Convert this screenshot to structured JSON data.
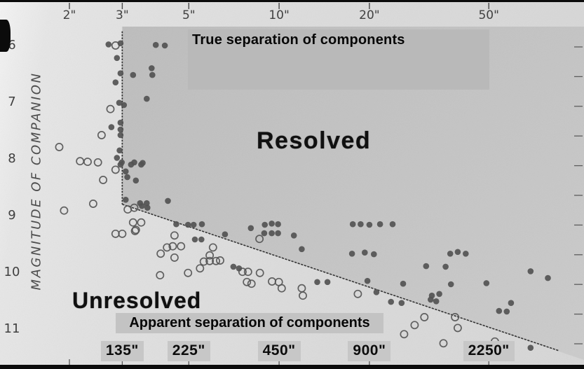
{
  "figure": {
    "top_axis_title": "True separation of components",
    "bottom_axis_title": "Apparent separation of components",
    "y_axis_title": "MAGNITUDE  OF  COMPANION",
    "region_labels": {
      "resolved": "Resolved",
      "unresolved": "Unresolved"
    },
    "top_ticks": [
      {
        "label": "2\"",
        "sep": 2
      },
      {
        "label": "3\"",
        "sep": 3
      },
      {
        "label": "5\"",
        "sep": 5
      },
      {
        "label": "10\"",
        "sep": 10
      },
      {
        "label": "20\"",
        "sep": 20
      },
      {
        "label": "50\"",
        "sep": 50
      }
    ],
    "bottom_ticks": [
      {
        "label": "135\"",
        "sep": 3
      },
      {
        "label": "225\"",
        "sep": 5
      },
      {
        "label": "450\"",
        "sep": 10
      },
      {
        "label": "900\"",
        "sep": 20
      },
      {
        "label": "2250\"",
        "sep": 50
      }
    ],
    "y_ticks": [
      {
        "label": "6",
        "mag": 6
      },
      {
        "label": "7",
        "mag": 7
      },
      {
        "label": "8",
        "mag": 8
      },
      {
        "label": "9",
        "mag": 9
      },
      {
        "label": "10",
        "mag": 10
      },
      {
        "label": "11",
        "mag": 11
      }
    ],
    "colors": {
      "resolved_region_dark": "#bdbdbd",
      "resolved_region_light": "#cbcbcb",
      "unresolved_region": "#e0e0e0",
      "overlay_patch": "#b9b9b9",
      "label_patch": "#c7c7c7",
      "marker": "#4f4f4f",
      "boundary_line": "#2f2f2f",
      "scan_bar": "#0b0b0b"
    }
  },
  "chart_data": {
    "type": "scatter",
    "x_axis": {
      "label": "True separation of components",
      "unit": "arcsec",
      "scale": "log",
      "range": [
        1.7,
        90
      ],
      "secondary_label": "Apparent separation of components",
      "secondary_tick_values": [
        "135\"",
        "225\"",
        "450\"",
        "900\"",
        "2250\""
      ],
      "secondary_factor": 45
    },
    "y_axis": {
      "label": "Magnitude of companion",
      "range": [
        5.7,
        11.45
      ],
      "inverted": true
    },
    "boundary_line": {
      "vertical_at_arcsec": 3,
      "vertical_from_mag": 5.75,
      "vertex": [
        3,
        8.8
      ],
      "diagonal_end": [
        85.5,
        11.38
      ]
    },
    "series": [
      {
        "name": "Resolved",
        "marker": "filled-dot",
        "points": [
          [
            2.7,
            5.98
          ],
          [
            2.96,
            5.96
          ],
          [
            2.88,
            6.22
          ],
          [
            2.96,
            6.49
          ],
          [
            3.26,
            6.52
          ],
          [
            2.85,
            6.65
          ],
          [
            3.88,
            5.99
          ],
          [
            4.16,
            6.0
          ],
          [
            3.76,
            6.4
          ],
          [
            3.78,
            6.52
          ],
          [
            3.62,
            6.94
          ],
          [
            2.93,
            7.01
          ],
          [
            3.04,
            7.05
          ],
          [
            2.96,
            7.36
          ],
          [
            2.96,
            7.48
          ],
          [
            2.96,
            7.58
          ],
          [
            2.76,
            7.44
          ],
          [
            2.94,
            7.85
          ],
          [
            2.88,
            7.98
          ],
          [
            2.99,
            8.06
          ],
          [
            3.29,
            8.06
          ],
          [
            3.51,
            8.07
          ],
          [
            2.96,
            8.1
          ],
          [
            3.21,
            8.1
          ],
          [
            3.47,
            8.1
          ],
          [
            3.08,
            8.22
          ],
          [
            3.12,
            8.32
          ],
          [
            3.33,
            8.38
          ],
          [
            3.08,
            8.72
          ],
          [
            3.44,
            8.78
          ],
          [
            3.62,
            8.78
          ],
          [
            4.26,
            8.74
          ],
          [
            3.49,
            8.83
          ],
          [
            3.64,
            8.86
          ],
          [
            4.54,
            9.15
          ],
          [
            4.97,
            9.16
          ],
          [
            5.19,
            9.16
          ],
          [
            5.53,
            9.15
          ],
          [
            5.24,
            9.42
          ],
          [
            5.51,
            9.42
          ],
          [
            6.6,
            9.33
          ],
          [
            8.05,
            9.22
          ],
          [
            8.96,
            9.16
          ],
          [
            9.45,
            9.14
          ],
          [
            9.92,
            9.15
          ],
          [
            8.92,
            9.31
          ],
          [
            9.45,
            9.31
          ],
          [
            9.92,
            9.31
          ],
          [
            7.04,
            9.9
          ],
          [
            7.35,
            9.93
          ],
          [
            11.2,
            9.35
          ],
          [
            11.9,
            9.59
          ],
          [
            13.4,
            10.17
          ],
          [
            14.5,
            10.17
          ],
          [
            17.6,
            9.15
          ],
          [
            18.7,
            9.15
          ],
          [
            20.0,
            9.16
          ],
          [
            21.7,
            9.15
          ],
          [
            23.9,
            9.15
          ],
          [
            17.5,
            9.67
          ],
          [
            19.3,
            9.65
          ],
          [
            20.7,
            9.68
          ],
          [
            19.7,
            10.15
          ],
          [
            21.1,
            10.35
          ],
          [
            23.6,
            10.52
          ],
          [
            25.6,
            10.54
          ],
          [
            25.9,
            10.2
          ],
          [
            30.9,
            9.89
          ],
          [
            35.9,
            9.9
          ],
          [
            37.2,
            9.67
          ],
          [
            39.4,
            9.64
          ],
          [
            41.9,
            9.67
          ],
          [
            37.4,
            10.21
          ],
          [
            49.1,
            10.19
          ],
          [
            32.0,
            10.48
          ],
          [
            32.3,
            10.41
          ],
          [
            33.4,
            10.51
          ],
          [
            34.2,
            10.38
          ],
          [
            54.1,
            10.68
          ],
          [
            57.4,
            10.69
          ],
          [
            59.3,
            10.54
          ],
          [
            68.9,
            9.98
          ],
          [
            78.7,
            10.1
          ],
          [
            68.9,
            11.33
          ]
        ]
      },
      {
        "name": "Unresolved",
        "marker": "open-circle",
        "points": [
          [
            2.85,
            6.0
          ],
          [
            2.74,
            7.12
          ],
          [
            2.56,
            7.58
          ],
          [
            1.85,
            7.79
          ],
          [
            2.17,
            8.04
          ],
          [
            2.3,
            8.05
          ],
          [
            2.49,
            8.06
          ],
          [
            2.85,
            8.19
          ],
          [
            2.59,
            8.37
          ],
          [
            2.4,
            8.79
          ],
          [
            1.92,
            8.91
          ],
          [
            3.13,
            8.89
          ],
          [
            3.29,
            8.86
          ],
          [
            3.26,
            9.12
          ],
          [
            3.47,
            9.12
          ],
          [
            3.33,
            9.25
          ],
          [
            2.85,
            9.32
          ],
          [
            3.0,
            9.32
          ],
          [
            3.31,
            9.27
          ],
          [
            4.48,
            9.35
          ],
          [
            4.23,
            9.56
          ],
          [
            4.42,
            9.54
          ],
          [
            4.71,
            9.54
          ],
          [
            4.03,
            9.67
          ],
          [
            4.48,
            9.74
          ],
          [
            6.02,
            9.56
          ],
          [
            5.87,
            9.7
          ],
          [
            5.61,
            9.81
          ],
          [
            5.87,
            9.8
          ],
          [
            6.16,
            9.8
          ],
          [
            6.36,
            9.79
          ],
          [
            5.45,
            9.93
          ],
          [
            4.97,
            10.01
          ],
          [
            4.01,
            10.05
          ],
          [
            7.55,
            9.99
          ],
          [
            7.88,
            9.99
          ],
          [
            8.6,
            9.41
          ],
          [
            8.63,
            10.01
          ],
          [
            7.81,
            10.17
          ],
          [
            8.09,
            10.2
          ],
          [
            9.47,
            10.16
          ],
          [
            9.98,
            10.17
          ],
          [
            10.2,
            10.28
          ],
          [
            11.9,
            10.28
          ],
          [
            12.0,
            10.41
          ],
          [
            18.3,
            10.38
          ],
          [
            26.1,
            11.09
          ],
          [
            28.3,
            10.93
          ],
          [
            30.5,
            10.79
          ],
          [
            35.3,
            11.25
          ],
          [
            38.6,
            10.79
          ],
          [
            39.4,
            10.98
          ],
          [
            52.4,
            11.22
          ]
        ]
      }
    ]
  }
}
